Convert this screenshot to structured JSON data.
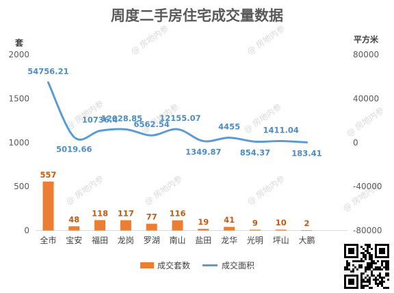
{
  "chart_data": {
    "type": "bar+line",
    "title": "周度二手房住宅成交量数据",
    "y_left_unit": "套",
    "y_right_unit": "平方米",
    "categories": [
      "全市",
      "宝安",
      "福田",
      "龙岗",
      "罗湖",
      "南山",
      "盐田",
      "龙华",
      "光明",
      "坪山",
      "大鹏"
    ],
    "y_left_ticks": [
      "0",
      "500",
      "1000",
      "1500",
      "2000"
    ],
    "y_right_ticks": [
      "-80000",
      "-40000",
      "0",
      "40000",
      "80000"
    ],
    "ylim_left": [
      0,
      2000
    ],
    "ylim_right": [
      -80000,
      80000
    ],
    "series": [
      {
        "name": "成交套数",
        "type": "bar",
        "color": "#ed7d31",
        "label_color": "#c55a11",
        "values": [
          557,
          48,
          118,
          117,
          77,
          116,
          19,
          41,
          9,
          10,
          2
        ],
        "labels": [
          "557",
          "48",
          "118",
          "117",
          "77",
          "116",
          "19",
          "41",
          "9",
          "10",
          "2"
        ]
      },
      {
        "name": "成交面积",
        "type": "line",
        "color": "#5b9bd5",
        "label_color": "#4d8cc6",
        "values": [
          54756.21,
          5019.66,
          10736.4,
          12028.85,
          6562.54,
          12155.07,
          1349.87,
          4455,
          854.37,
          1411.04,
          183.41
        ],
        "labels": [
          "54756.21",
          "5019.66",
          "10736.4",
          "12028.85",
          "6562.54",
          "12155.07",
          "1349.87",
          "4455",
          "854.37",
          "1411.04",
          "183.41"
        ]
      }
    ],
    "legend_position": "bottom",
    "grid": false
  },
  "watermark": "@ 房地内参",
  "qr_code_icon": "qr-code-icon"
}
